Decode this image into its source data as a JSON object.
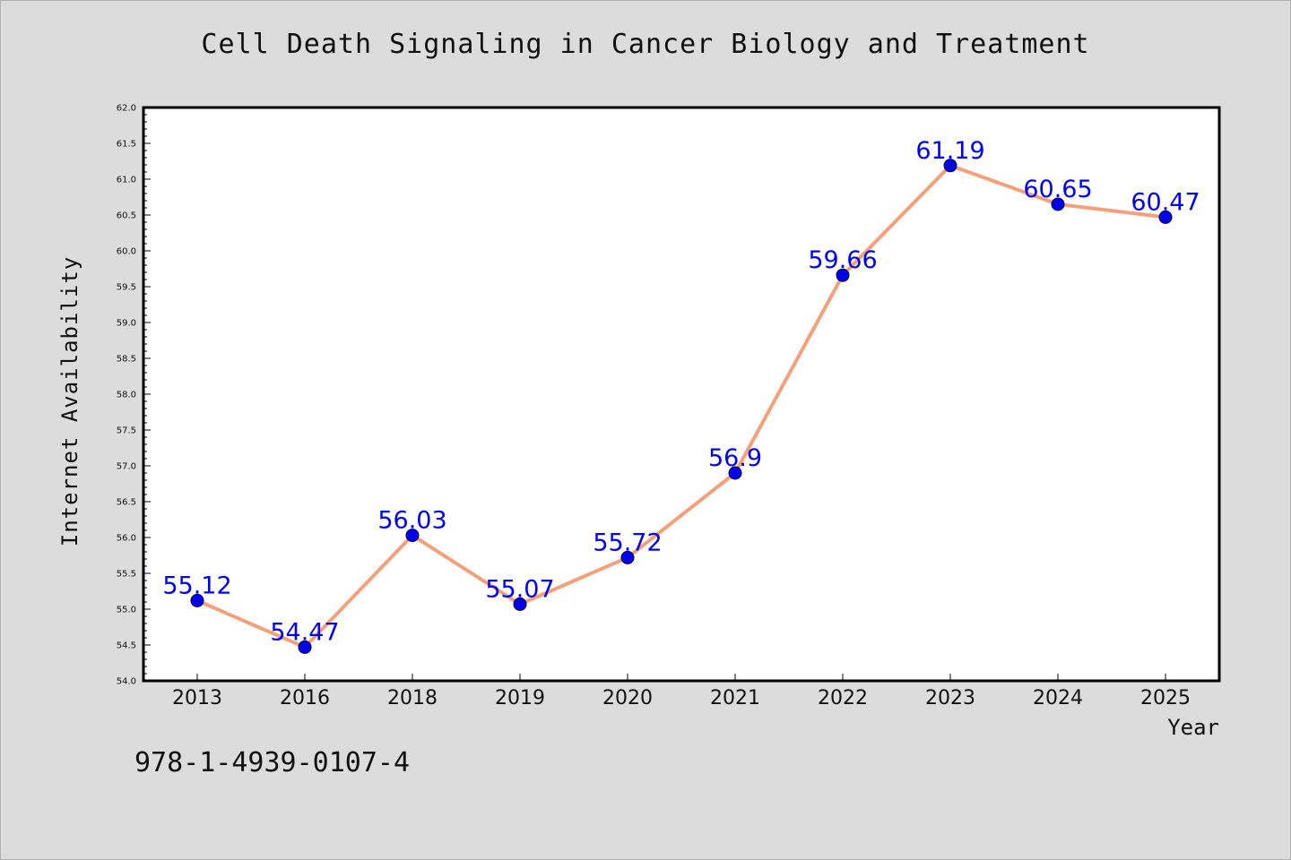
{
  "chart_data": {
    "type": "line",
    "title": "Cell Death Signaling in Cancer Biology and Treatment",
    "xlabel": "Year",
    "ylabel": "Internet Availability",
    "categories": [
      "2013",
      "2016",
      "2018",
      "2019",
      "2020",
      "2021",
      "2022",
      "2023",
      "2024",
      "2025"
    ],
    "values": [
      55.12,
      54.47,
      56.03,
      55.07,
      55.72,
      56.9,
      59.66,
      61.19,
      60.65,
      60.47
    ],
    "data_labels": [
      "55.12",
      "54.47",
      "56.03",
      "55.07",
      "55.72",
      "56.9",
      "59.66",
      "61.19",
      "60.65",
      "60.47"
    ],
    "ylim": [
      54.0,
      62.0
    ],
    "yticks": [
      "54.0",
      "54.5",
      "55.0",
      "55.5",
      "56.0",
      "56.5",
      "57.0",
      "57.5",
      "58.0",
      "58.5",
      "59.0",
      "59.5",
      "60.0",
      "60.5",
      "61.0",
      "61.5",
      "62.0"
    ],
    "grid": false,
    "line_color": "#f4a07a",
    "marker_color": "#0000ee",
    "label_color": "#0000ee"
  },
  "footer_code": "978-1-4939-0107-4"
}
